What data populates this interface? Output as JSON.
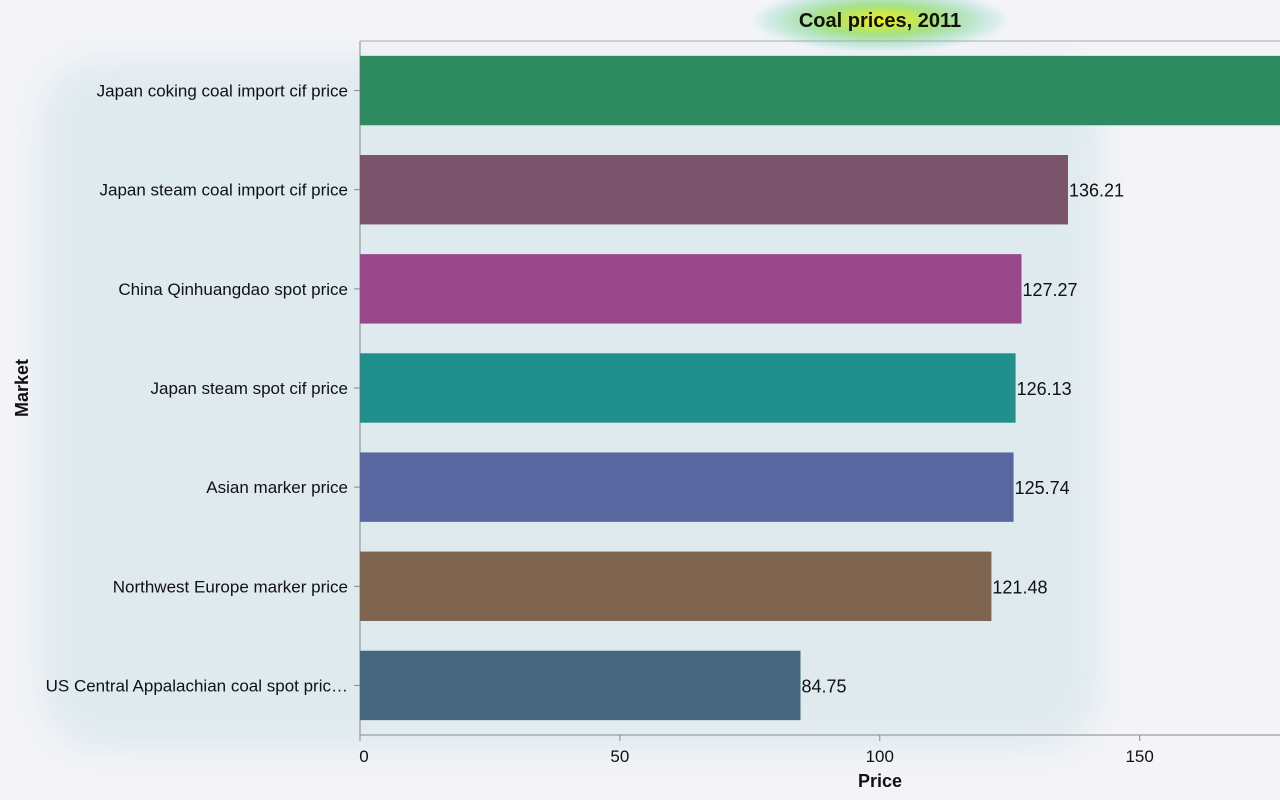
{
  "chart_data": {
    "type": "bar",
    "orientation": "horizontal",
    "title": "Coal prices, 2011",
    "xlabel": "Price",
    "ylabel": "Market",
    "xlim": [
      0,
      177
    ],
    "x_ticks": [
      0,
      50,
      100,
      150
    ],
    "grid": false,
    "legend": "none",
    "categories": [
      "Japan coking coal import cif price",
      "Japan steam coal import cif price",
      "China Qinhuangdao spot price",
      "Japan steam spot cif price",
      "Asian marker price",
      "Northwest Europe marker price",
      "US Central Appalachian coal spot pric…"
    ],
    "values": [
      177,
      136.21,
      127.27,
      126.13,
      125.74,
      121.48,
      84.75
    ],
    "value_labels": [
      "",
      "136.21",
      "127.27",
      "126.13",
      "125.74",
      "121.48",
      "84.75"
    ],
    "colors": [
      "#2e8a61",
      "#7a546a",
      "#97478a",
      "#21908d",
      "#5a66a0",
      "#7f6450",
      "#46677f"
    ]
  }
}
